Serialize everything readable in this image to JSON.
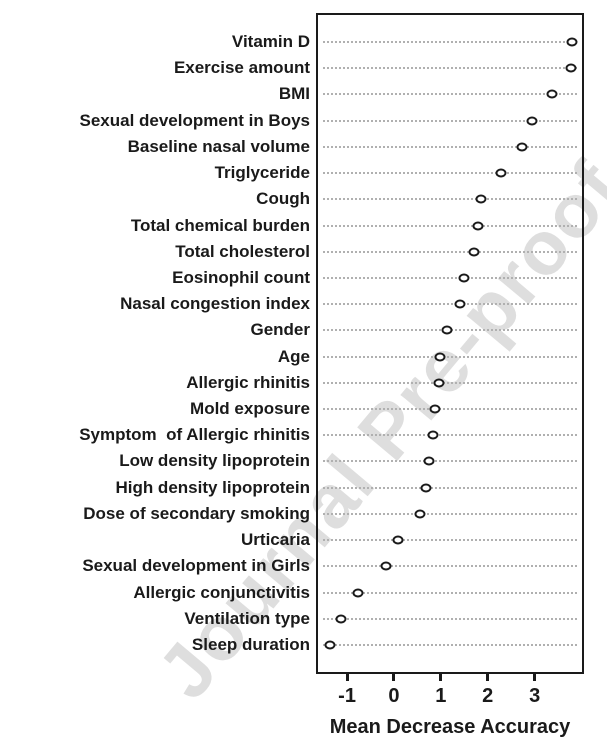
{
  "watermark": {
    "text": "Journal Pre-proof"
  },
  "colors": {
    "ink": "#1a1a1a",
    "grid": "#b0b0b0",
    "marker_fill": "#ffffff",
    "watermark": "#dedede",
    "background": "#ffffff"
  },
  "chart_data": {
    "type": "scatter",
    "variant": "dotchart-variable-importance",
    "title": "",
    "xlabel": "Mean Decrease Accuracy",
    "ylabel": "",
    "categories": [
      "Vitamin D",
      "Exercise amount",
      "BMI",
      "Sexual development in Boys",
      "Baseline nasal volume",
      "Triglyceride",
      "Cough",
      "Total chemical burden",
      "Total cholesterol",
      "Eosinophil count",
      "Nasal congestion index",
      "Gender",
      "Age",
      "Allergic rhinitis",
      "Mold exposure",
      "Symptom  of Allergic rhinitis",
      "Low density lipoprotein",
      "High density lipoprotein",
      "Dose of secondary smoking",
      "Urticaria",
      "Sexual development in Girls",
      "Allergic conjunctivitis",
      "Ventilation type",
      "Sleep duration"
    ],
    "values": [
      3.8,
      3.77,
      3.37,
      2.94,
      2.74,
      2.29,
      1.85,
      1.8,
      1.7,
      1.5,
      1.4,
      1.14,
      0.98,
      0.95,
      0.88,
      0.83,
      0.75,
      0.68,
      0.56,
      0.09,
      -0.16,
      -0.76,
      -1.12,
      -1.36
    ],
    "xticks": [
      -1,
      0,
      1,
      2,
      3
    ],
    "xlim": [
      -1.62,
      4.01
    ],
    "grid": "dotted-horizontal",
    "legend": "none",
    "marker": "open-circle"
  }
}
